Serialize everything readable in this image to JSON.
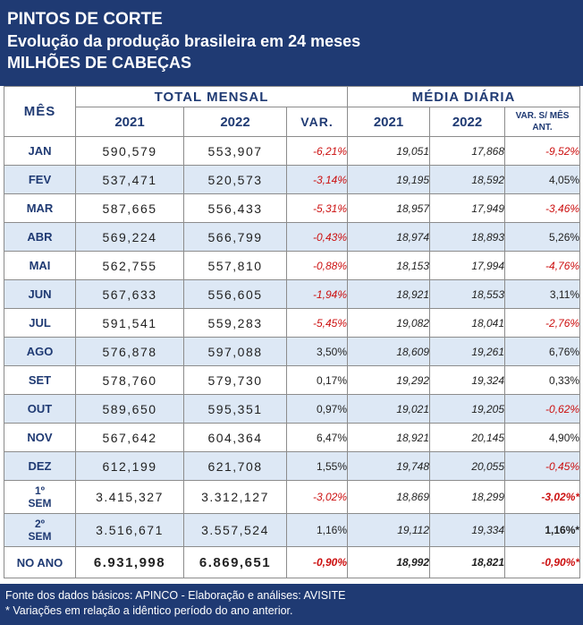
{
  "header": {
    "line1": "PINTOS DE CORTE",
    "line2": "Evolução da produção brasileira em 24 meses",
    "line3": "MILHÕES DE CABEÇAS"
  },
  "columns": {
    "mes": "MÊS",
    "total_mensal": "TOTAL MENSAL",
    "media_diaria": "MÉDIA DIÁRIA",
    "y2021": "2021",
    "y2022": "2022",
    "var": "VAR.",
    "var_mes_ant": "VAR. S/ MÊS ANT."
  },
  "rows": [
    {
      "mes": "JAN",
      "t2021": "590,579",
      "t2022": "553,907",
      "var": "-6,21%",
      "d2021": "19,051",
      "d2022": "17,868",
      "var2": "-9,52%",
      "var_neg": true,
      "var2_neg": true
    },
    {
      "mes": "FEV",
      "t2021": "537,471",
      "t2022": "520,573",
      "var": "-3,14%",
      "d2021": "19,195",
      "d2022": "18,592",
      "var2": "4,05%",
      "var_neg": true,
      "var2_neg": false
    },
    {
      "mes": "MAR",
      "t2021": "587,665",
      "t2022": "556,433",
      "var": "-5,31%",
      "d2021": "18,957",
      "d2022": "17,949",
      "var2": "-3,46%",
      "var_neg": true,
      "var2_neg": true
    },
    {
      "mes": "ABR",
      "t2021": "569,224",
      "t2022": "566,799",
      "var": "-0,43%",
      "d2021": "18,974",
      "d2022": "18,893",
      "var2": "5,26%",
      "var_neg": true,
      "var2_neg": false
    },
    {
      "mes": "MAI",
      "t2021": "562,755",
      "t2022": "557,810",
      "var": "-0,88%",
      "d2021": "18,153",
      "d2022": "17,994",
      "var2": "-4,76%",
      "var_neg": true,
      "var2_neg": true
    },
    {
      "mes": "JUN",
      "t2021": "567,633",
      "t2022": "556,605",
      "var": "-1,94%",
      "d2021": "18,921",
      "d2022": "18,553",
      "var2": "3,11%",
      "var_neg": true,
      "var2_neg": false
    },
    {
      "mes": "JUL",
      "t2021": "591,541",
      "t2022": "559,283",
      "var": "-5,45%",
      "d2021": "19,082",
      "d2022": "18,041",
      "var2": "-2,76%",
      "var_neg": true,
      "var2_neg": true
    },
    {
      "mes": "AGO",
      "t2021": "576,878",
      "t2022": "597,088",
      "var": "3,50%",
      "d2021": "18,609",
      "d2022": "19,261",
      "var2": "6,76%",
      "var_neg": false,
      "var2_neg": false
    },
    {
      "mes": "SET",
      "t2021": "578,760",
      "t2022": "579,730",
      "var": "0,17%",
      "d2021": "19,292",
      "d2022": "19,324",
      "var2": "0,33%",
      "var_neg": false,
      "var2_neg": false
    },
    {
      "mes": "OUT",
      "t2021": "589,650",
      "t2022": "595,351",
      "var": "0,97%",
      "d2021": "19,021",
      "d2022": "19,205",
      "var2": "-0,62%",
      "var_neg": false,
      "var2_neg": true
    },
    {
      "mes": "NOV",
      "t2021": "567,642",
      "t2022": "604,364",
      "var": "6,47%",
      "d2021": "18,921",
      "d2022": "20,145",
      "var2": "4,90%",
      "var_neg": false,
      "var2_neg": false
    },
    {
      "mes": "DEZ",
      "t2021": "612,199",
      "t2022": "621,708",
      "var": "1,55%",
      "d2021": "19,748",
      "d2022": "20,055",
      "var2": "-0,45%",
      "var_neg": false,
      "var2_neg": true
    }
  ],
  "semesters": [
    {
      "label_a": "1º",
      "label_b": "SEM",
      "t2021": "3.415,327",
      "t2022": "3.312,127",
      "var": "-3,02%",
      "d2021": "18,869",
      "d2022": "18,299",
      "var2": "-3,02%*",
      "var_neg": true,
      "var2_neg": true
    },
    {
      "label_a": "2º",
      "label_b": "SEM",
      "t2021": "3.516,671",
      "t2022": "3.557,524",
      "var": "1,16%",
      "d2021": "19,112",
      "d2022": "19,334",
      "var2": "1,16%*",
      "var_neg": false,
      "var2_neg": false
    }
  ],
  "year": {
    "mes": "NO ANO",
    "t2021": "6.931,998",
    "t2022": "6.869,651",
    "var": "-0,90%",
    "d2021": "18,992",
    "d2022": "18,821",
    "var2": "-0,90%*",
    "var_neg": true,
    "var2_neg": true
  },
  "footer": {
    "line1": "Fonte dos dados básicos: APINCO - Elaboração e análises: AVISITE",
    "line2": "* Variações em relação a idêntico período do ano anterior."
  },
  "colors": {
    "header_bg": "#1f3a73",
    "alt_row": "#dde8f5",
    "negative": "#cc1010"
  }
}
